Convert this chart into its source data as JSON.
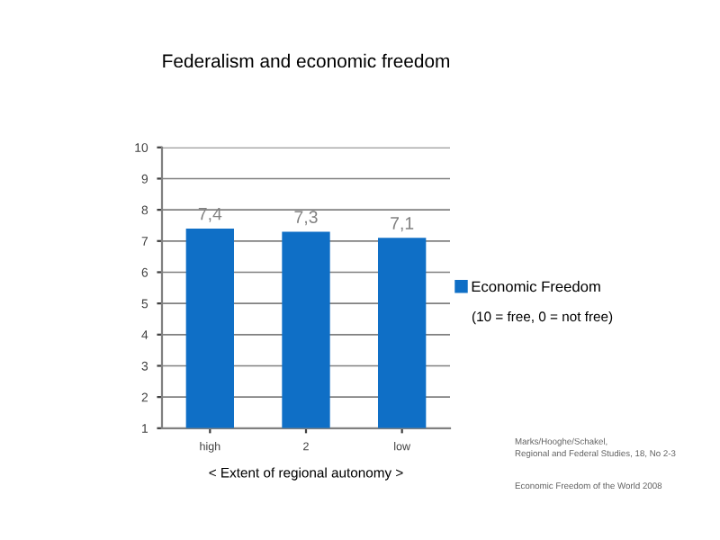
{
  "chart_data": {
    "type": "bar",
    "title": "Federalism and economic freedom",
    "xlabel": "< Extent of regional autonomy >",
    "categories": [
      "high",
      "2",
      "low"
    ],
    "series": [
      {
        "name": "Economic Freedom",
        "color": "#0f6fc6",
        "values": [
          7.4,
          7.3,
          7.1
        ],
        "value_labels": [
          "7,4",
          "7,3",
          "7,1"
        ]
      }
    ],
    "ylim": [
      1,
      10
    ],
    "yticks": [
      1,
      2,
      3,
      4,
      5,
      6,
      7,
      8,
      9,
      10
    ],
    "grid": "y",
    "legend": "right",
    "annotations": [
      "(10 = free, 0 = not free)",
      "Marks/Hooghe/Schakel,\nRegional and Federal Studies, 18, No 2-3",
      "Economic Freedom of the World 2008"
    ]
  }
}
